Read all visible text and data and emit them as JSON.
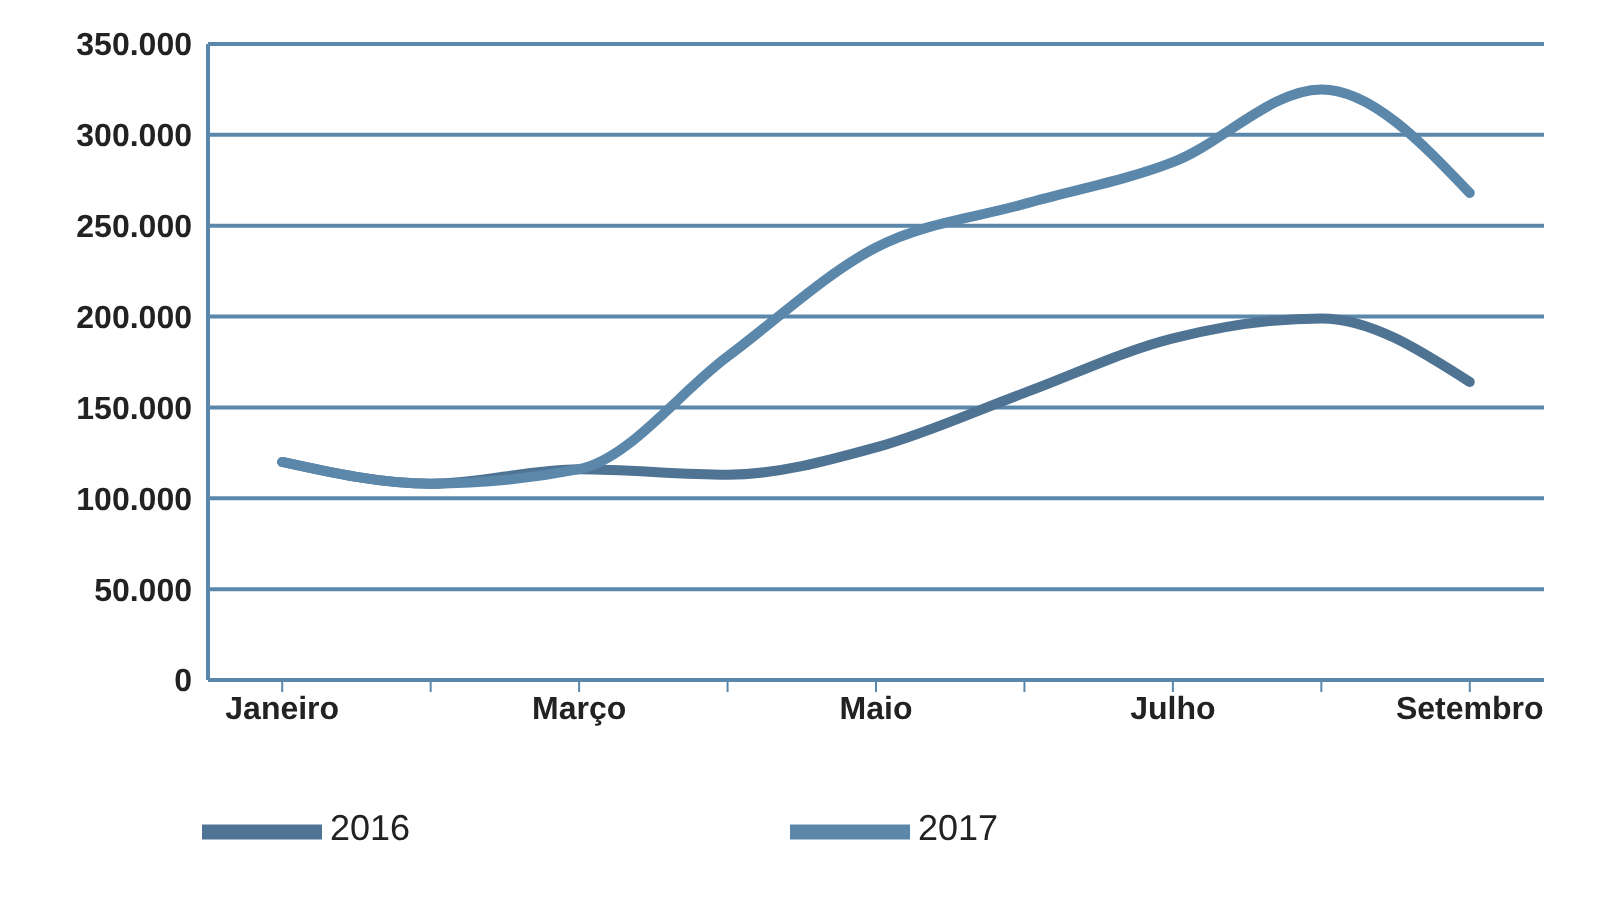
{
  "chart_data": {
    "type": "line",
    "categories": [
      "Janeiro",
      null,
      "Março",
      null,
      "Maio",
      null,
      "Julho",
      null,
      "Setembro"
    ],
    "series": [
      {
        "name": "2016",
        "color": "#4f7393",
        "values": [
          120000,
          108000,
          116000,
          113000,
          128000,
          158000,
          188000,
          199000,
          164000
        ]
      },
      {
        "name": "2017",
        "color": "#5b87ab",
        "values": [
          120000,
          108000,
          116000,
          178000,
          238000,
          262000,
          285000,
          325000,
          268000
        ]
      }
    ],
    "ylim": [
      0,
      350000
    ],
    "yticks": [
      {
        "value": 0,
        "label": "0"
      },
      {
        "value": 50000,
        "label": "50.000"
      },
      {
        "value": 100000,
        "label": "100.000"
      },
      {
        "value": 150000,
        "label": "150.000"
      },
      {
        "value": 200000,
        "label": "200.000"
      },
      {
        "value": 250000,
        "label": "250.000"
      },
      {
        "value": 300000,
        "label": "300.000"
      },
      {
        "value": 350000,
        "label": "350.000"
      }
    ],
    "grid": "y",
    "legend": "bottom",
    "marker": "none",
    "line_style": "solid"
  }
}
